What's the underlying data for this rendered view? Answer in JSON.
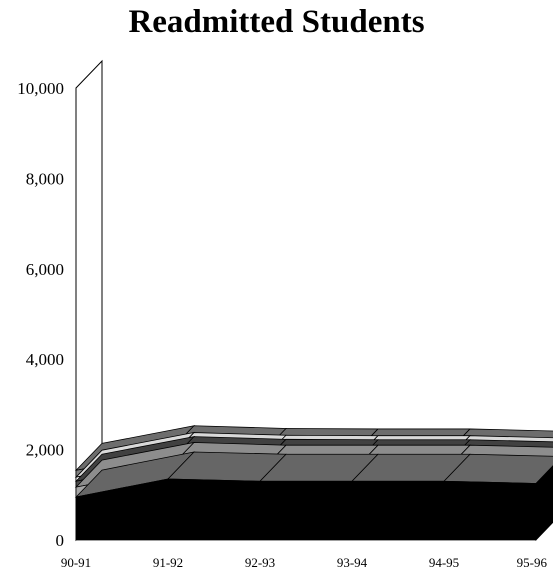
{
  "chart_data": {
    "type": "area",
    "title": "Readmitted Students",
    "categories": [
      "90-91",
      "91-92",
      "92-93",
      "93-94",
      "94-95",
      "95-96"
    ],
    "series": [
      {
        "values": [
          950,
          1350,
          1300,
          1300,
          1300,
          1250
        ],
        "color": "#000000"
      },
      {
        "values": [
          220,
          210,
          200,
          200,
          200,
          200
        ],
        "color": "#a6a6a6"
      },
      {
        "values": [
          130,
          130,
          130,
          120,
          120,
          120
        ],
        "color": "#4d4d4d"
      },
      {
        "values": [
          90,
          90,
          90,
          90,
          90,
          90
        ],
        "color": "#ffffff"
      },
      {
        "values": [
          150,
          150,
          150,
          150,
          150,
          150
        ],
        "color": "#808080"
      }
    ],
    "ylim": [
      0,
      10000
    ],
    "yticks": [
      "0",
      "2,000",
      "4,000",
      "6,000",
      "8,000",
      "10,000"
    ],
    "stacked": true,
    "three_d": true,
    "grid": false
  }
}
